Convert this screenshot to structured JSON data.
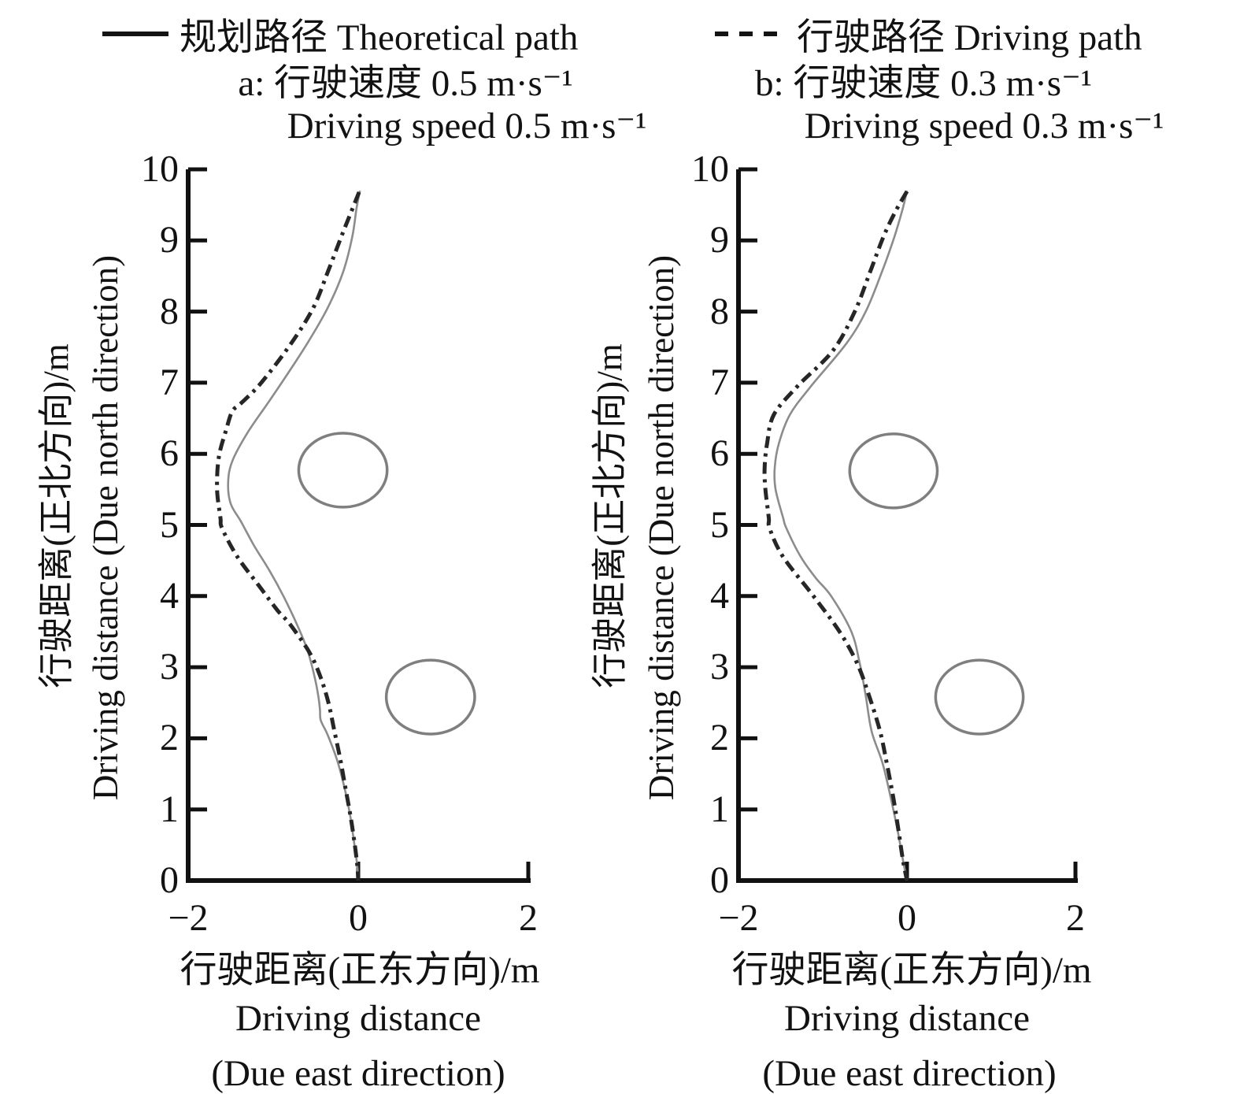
{
  "figure": {
    "legend": {
      "theoretical": {
        "label": "规划路径 Theoretical path",
        "line_style": "solid",
        "color": "#141414"
      },
      "driving": {
        "label": "行驶路径 Driving path",
        "line_style": "dashed",
        "color": "#141414"
      }
    },
    "x_axis": {
      "label_cn": "行驶距离(正东方向)/m",
      "label_en_1": "Driving distance",
      "label_en_2": "(Due east direction)",
      "ticks": [
        "−2",
        "0",
        "2"
      ],
      "tick_values": [
        -2,
        0,
        2
      ],
      "range": [
        -2,
        2
      ]
    },
    "y_axis": {
      "label_cn": "行驶距离(正北方向)/m",
      "label_en": "Driving distance (Due north direction)",
      "ticks": [
        "0",
        "1",
        "2",
        "3",
        "4",
        "5",
        "6",
        "7",
        "8",
        "9",
        "10"
      ],
      "tick_values": [
        0,
        1,
        2,
        3,
        4,
        5,
        6,
        7,
        8,
        9,
        10
      ],
      "range": [
        0,
        10
      ]
    },
    "colors": {
      "axis": "#111111",
      "theoretical_curve": "#8c8c8c",
      "driving_curve": "#262626",
      "obstacle": "#7f7f7f",
      "text": "#121212"
    }
  },
  "chart_data": [
    {
      "type": "line",
      "panel": "a",
      "title_cn": "a: 行驶速度 0.5 m·s⁻¹",
      "title_en": "Driving speed 0.5 m·s⁻¹",
      "xlabel": "行驶距离(正东方向)/m Driving distance (Due east direction)",
      "ylabel": "行驶距离(正北方向)/m Driving distance (Due north direction)",
      "xlim": [
        -2,
        2
      ],
      "ylim": [
        0,
        10
      ],
      "grid": false,
      "obstacles": [
        {
          "cx": -0.18,
          "cy": 5.77,
          "r": 0.52
        },
        {
          "cx": 0.85,
          "cy": 2.58,
          "r": 0.52
        }
      ],
      "series": [
        {
          "name": "规划路径 Theoretical path",
          "style": "solid",
          "points": [
            [
              0.02,
              9.7
            ],
            [
              -0.02,
              9.45
            ],
            [
              -0.07,
              9.05
            ],
            [
              -0.18,
              8.55
            ],
            [
              -0.36,
              8.05
            ],
            [
              -0.6,
              7.55
            ],
            [
              -0.9,
              7.0
            ],
            [
              -1.07,
              6.7
            ],
            [
              -1.3,
              6.3
            ],
            [
              -1.48,
              5.9
            ],
            [
              -1.53,
              5.6
            ],
            [
              -1.5,
              5.3
            ],
            [
              -1.38,
              5.05
            ],
            [
              -1.22,
              4.7
            ],
            [
              -1.04,
              4.35
            ],
            [
              -0.88,
              4.0
            ],
            [
              -0.72,
              3.6
            ],
            [
              -0.6,
              3.25
            ],
            [
              -0.52,
              2.9
            ],
            [
              -0.47,
              2.6
            ],
            [
              -0.45,
              2.4
            ],
            [
              -0.44,
              2.25
            ],
            [
              -0.36,
              2.05
            ],
            [
              -0.25,
              1.7
            ],
            [
              -0.17,
              1.35
            ],
            [
              -0.1,
              0.95
            ],
            [
              -0.05,
              0.55
            ],
            [
              -0.01,
              0.2
            ],
            [
              0.0,
              0.0
            ]
          ]
        },
        {
          "name": "行驶路径 Driving path",
          "style": "dash-dot",
          "points": [
            [
              0.01,
              9.68
            ],
            [
              -0.1,
              9.35
            ],
            [
              -0.2,
              9.05
            ],
            [
              -0.36,
              8.55
            ],
            [
              -0.53,
              8.05
            ],
            [
              -0.79,
              7.55
            ],
            [
              -1.14,
              7.0
            ],
            [
              -1.37,
              6.72
            ],
            [
              -1.48,
              6.6
            ],
            [
              -1.55,
              6.35
            ],
            [
              -1.64,
              5.95
            ],
            [
              -1.66,
              5.5
            ],
            [
              -1.62,
              5.1
            ],
            [
              -1.6,
              4.95
            ],
            [
              -1.42,
              4.55
            ],
            [
              -1.17,
              4.15
            ],
            [
              -0.95,
              3.8
            ],
            [
              -0.8,
              3.6
            ],
            [
              -0.57,
              3.2
            ],
            [
              -0.44,
              2.85
            ],
            [
              -0.35,
              2.5
            ],
            [
              -0.28,
              2.1
            ],
            [
              -0.21,
              1.7
            ],
            [
              -0.15,
              1.3
            ],
            [
              -0.09,
              0.9
            ],
            [
              -0.04,
              0.5
            ],
            [
              -0.01,
              0.2
            ],
            [
              0.0,
              0.0
            ]
          ]
        }
      ]
    },
    {
      "type": "line",
      "panel": "b",
      "title_cn": "b: 行驶速度 0.3 m·s⁻¹",
      "title_en": "Driving speed 0.3 m·s⁻¹",
      "xlabel": "行驶距离(正东方向)/m Driving distance (Due east direction)",
      "ylabel": "行驶距离(正北方向)/m Driving distance (Due north direction)",
      "xlim": [
        -2,
        2
      ],
      "ylim": [
        0,
        10
      ],
      "grid": false,
      "obstacles": [
        {
          "cx": -0.16,
          "cy": 5.76,
          "r": 0.52
        },
        {
          "cx": 0.86,
          "cy": 2.58,
          "r": 0.52
        }
      ],
      "series": [
        {
          "name": "规划路径 Theoretical path",
          "style": "solid",
          "points": [
            [
              0.0,
              9.7
            ],
            [
              -0.05,
              9.45
            ],
            [
              -0.15,
              9.05
            ],
            [
              -0.3,
              8.55
            ],
            [
              -0.49,
              8.0
            ],
            [
              -0.72,
              7.55
            ],
            [
              -1.14,
              6.95
            ],
            [
              -1.39,
              6.55
            ],
            [
              -1.52,
              6.15
            ],
            [
              -1.57,
              5.8
            ],
            [
              -1.56,
              5.5
            ],
            [
              -1.47,
              5.1
            ],
            [
              -1.43,
              4.95
            ],
            [
              -1.26,
              4.55
            ],
            [
              -1.08,
              4.25
            ],
            [
              -0.9,
              4.0
            ],
            [
              -0.66,
              3.5
            ],
            [
              -0.56,
              3.05
            ],
            [
              -0.49,
              2.6
            ],
            [
              -0.42,
              2.1
            ],
            [
              -0.29,
              1.65
            ],
            [
              -0.19,
              1.15
            ],
            [
              -0.11,
              0.7
            ],
            [
              -0.05,
              0.3
            ],
            [
              0.0,
              0.0
            ]
          ]
        },
        {
          "name": "行驶路径 Driving path",
          "style": "dash-dot",
          "points": [
            [
              0.0,
              9.69
            ],
            [
              -0.14,
              9.4
            ],
            [
              -0.28,
              9.05
            ],
            [
              -0.44,
              8.55
            ],
            [
              -0.62,
              8.0
            ],
            [
              -0.88,
              7.45
            ],
            [
              -1.3,
              6.95
            ],
            [
              -1.58,
              6.55
            ],
            [
              -1.66,
              6.15
            ],
            [
              -1.69,
              5.8
            ],
            [
              -1.68,
              5.5
            ],
            [
              -1.64,
              5.1
            ],
            [
              -1.63,
              4.95
            ],
            [
              -1.47,
              4.55
            ],
            [
              -1.11,
              4.0
            ],
            [
              -0.8,
              3.5
            ],
            [
              -0.59,
              3.05
            ],
            [
              -0.45,
              2.6
            ],
            [
              -0.32,
              2.1
            ],
            [
              -0.24,
              1.65
            ],
            [
              -0.16,
              1.15
            ],
            [
              -0.1,
              0.7
            ],
            [
              -0.05,
              0.3
            ],
            [
              0.0,
              0.0
            ]
          ]
        }
      ]
    }
  ]
}
